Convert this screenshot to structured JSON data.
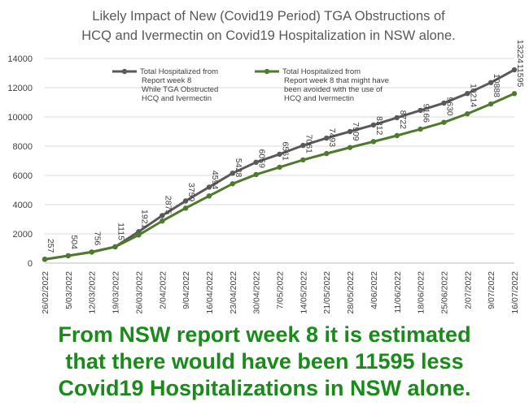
{
  "chart_data": {
    "type": "line",
    "title_lines": [
      "Likely Impact of New (Covid19 Period) TGA Obstructions of",
      "HCQ and Ivermectin on Covid19 Hospitalization in NSW alone."
    ],
    "categories": [
      "26/02/2022",
      "5/03/2022",
      "12/03/2022",
      "19/03/2022",
      "26/03/2022",
      "2/04/2022",
      "9/04/2022",
      "16/04/2022",
      "23/04/2022",
      "30/04/2022",
      "7/05/2022",
      "14/05/2022",
      "21/05/2022",
      "28/05/2022",
      "4/06/2022",
      "11/06/2022",
      "18/06/2022",
      "25/06/2022",
      "2/07/2022",
      "9/07/2022",
      "16/07/2022"
    ],
    "ylim": [
      0,
      14000
    ],
    "yticks": [
      "0",
      "2000",
      "4000",
      "6000",
      "8000",
      "10000",
      "12000",
      "14000"
    ],
    "grid": true,
    "legend_position": "top-left",
    "series": [
      {
        "name_lines": [
          "Total Hospitalized from",
          "Report week 8",
          "While TGA Obstructed",
          "HCQ and Ivermectin"
        ],
        "color": "#595959",
        "values": [
          257,
          504,
          756,
          1115,
          2150,
          3250,
          4250,
          5200,
          6150,
          6900,
          7450,
          8050,
          8550,
          9000,
          9450,
          9950,
          10450,
          10950,
          11600,
          12350,
          13224
        ],
        "data_labels": [
          "257",
          "504",
          "756",
          "1115",
          "",
          "",
          "",
          "",
          "",
          "",
          "",
          "",
          "",
          "",
          "",
          "",
          "",
          "",
          "",
          "",
          "13224"
        ]
      },
      {
        "name_lines": [
          "Total Hospitalized from",
          "Report week 8 that might have",
          "been avoided with the use of",
          "HCQ and Ivermectin"
        ],
        "color": "#4e7a2e",
        "values": [
          257,
          504,
          756,
          1115,
          1921,
          2875,
          3759,
          4594,
          5428,
          6059,
          6561,
          7061,
          7493,
          7909,
          8312,
          8722,
          9166,
          9630,
          10214,
          10888,
          11595
        ],
        "data_labels": [
          "",
          "",
          "",
          "",
          "1921",
          "2875",
          "3759",
          "4594",
          "5428",
          "6059",
          "6561",
          "7061",
          "7493",
          "7909",
          "8312",
          "8722",
          "9166",
          "9630",
          "10214",
          "10888",
          "11595"
        ]
      }
    ]
  },
  "caption_lines": [
    "From NSW report week 8 it is estimated",
    "that there would have been 11595 less",
    "Covid19 Hospitalizations in NSW alone."
  ]
}
